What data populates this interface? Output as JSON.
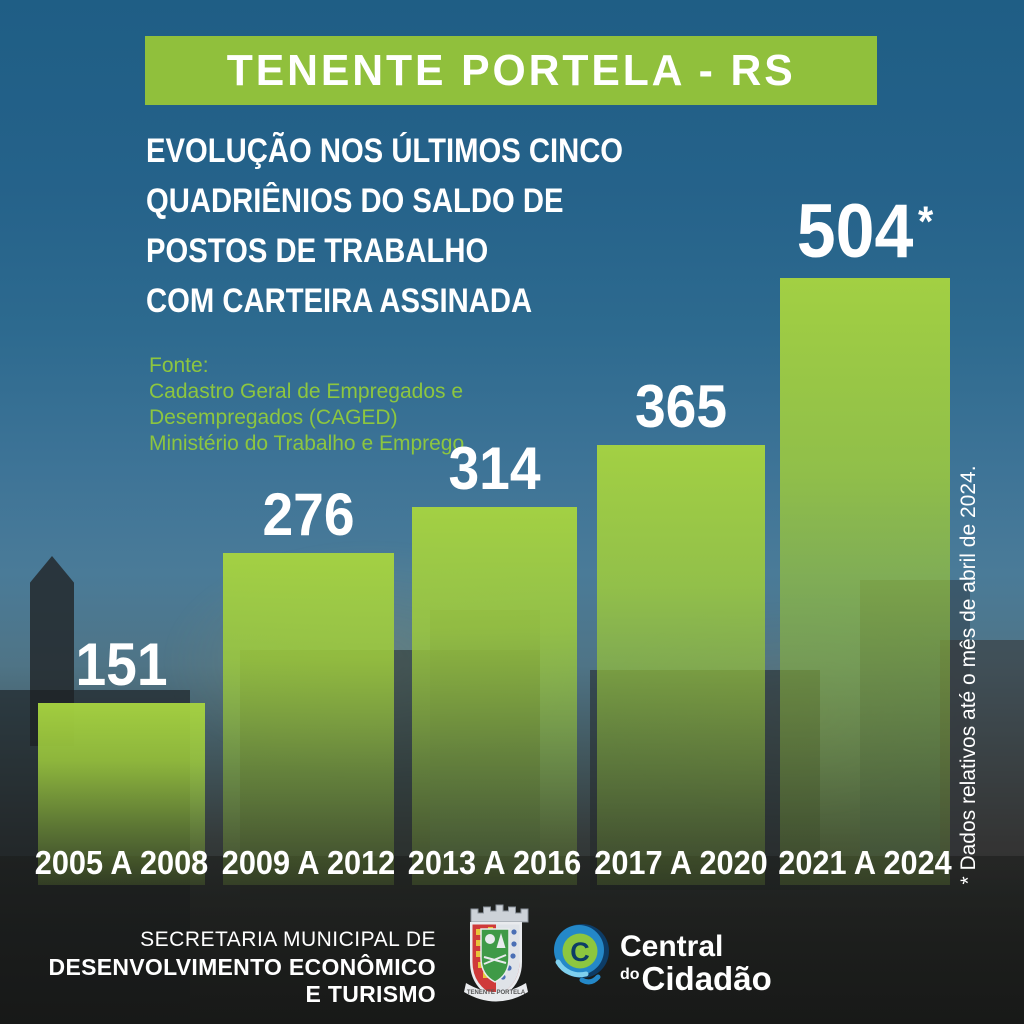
{
  "banner": {
    "title": "TENENTE PORTELA - RS",
    "bg_color": "#90c03c"
  },
  "heading": {
    "lines": [
      "EVOLUÇÃO NOS ÚLTIMOS CINCO",
      "QUADRIÊNIOS DO SALDO DE",
      "POSTOS DE TRABALHO",
      "COM CARTEIRA ASSINADA"
    ]
  },
  "source": {
    "label": "Fonte:",
    "lines": [
      "Cadastro Geral de Empregados e",
      "Desempregados (CAGED)",
      "Ministério do Trabalho e Emprego"
    ],
    "color": "#8dc63f"
  },
  "chart_data": {
    "type": "bar",
    "title": "Evolução nos últimos cinco quadriênios do saldo de postos de trabalho com carteira assinada",
    "categories": [
      "2005 A 2008",
      "2009 A 2012",
      "2013 A 2016",
      "2017 A 2020",
      "2021 A 2024"
    ],
    "values": [
      151,
      276,
      314,
      365,
      504
    ],
    "data_labels": [
      "151",
      "276",
      "314",
      "365",
      "504*"
    ],
    "bar_color": "#a5d23f",
    "ylim": [
      0,
      504
    ],
    "grid": false,
    "legend": false,
    "note": "* Dados relativos até o mês de abril de 2024."
  },
  "footnote": {
    "text": "* Dados relativos até o mês de abril de 2024."
  },
  "footer": {
    "secretariat": [
      "SECRETARIA MUNICIPAL DE",
      "DESENVOLVIMENTO ECONÔMICO",
      "E TURISMO"
    ],
    "crest": {
      "ribbon_text": "TENENTE PORTELA"
    },
    "central_logo": {
      "word1": "Central",
      "word2_small": "do",
      "word2": "Cidadão"
    }
  },
  "colors": {
    "banner_green": "#90c03c",
    "bar_green": "#a5d23f",
    "source_green": "#8dc63f",
    "sky_blue": "#2d6a8f",
    "text_white": "#ffffff"
  }
}
